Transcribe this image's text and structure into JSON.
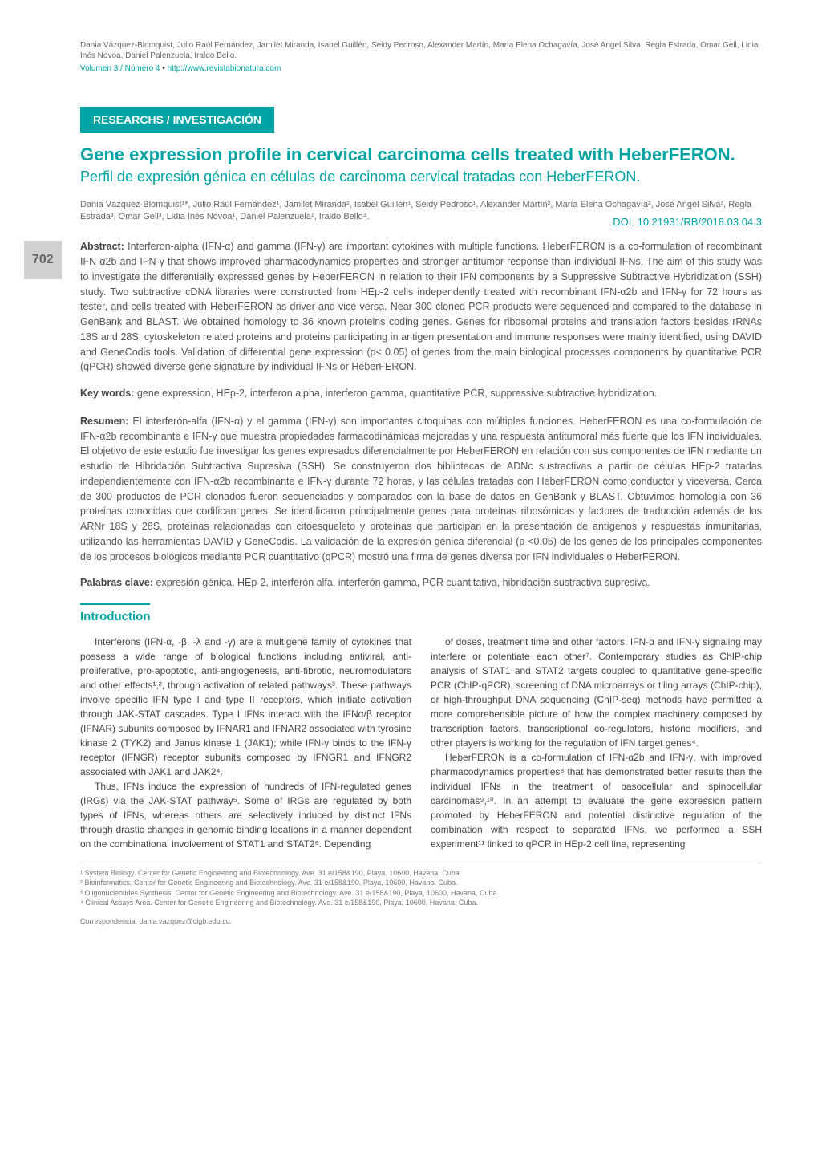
{
  "page_number": "702",
  "header": {
    "authors_line": "Dania Vázquez-Blomquist, Julio Raúl Fernández, Jamilet Miranda, Isabel Guillén, Seidy Pedroso, Alexander Martín, María Elena Ochagavía, José Angel Silva, Regla Estrada, Omar Gell, Lidia Inés Novoa, Daniel Palenzuela, Iraldo Bello.",
    "volume": "Volumen 3 / Número 4",
    "bullet": " • ",
    "url": "http://www.revistabionatura.com"
  },
  "section_badge": "RESEARCHS / INVESTIGACIÓN",
  "title_en": "Gene expression profile in cervical carcinoma cells treated with HeberFERON.",
  "title_es": "Perfil de expresión génica en células de carcinoma cervical tratadas con HeberFERON.",
  "author_line": "Dania Vázquez-Blomquist¹*, Julio Raúl Fernández¹, Jamilet Miranda², Isabel Guillén¹, Seidy Pedroso¹, Alexander Martín², María Elena Ochagavía², José Angel Silva³, Regla Estrada³, Omar Gell³, Lidia Inés Novoa¹, Daniel Palenzuela¹, Iraldo Bello⁴.",
  "doi": "DOI. 10.21931/RB/2018.03.04.3",
  "abstract_en": {
    "label": "Abstract:",
    "text": " Interferon-alpha (IFN-α) and gamma (IFN-γ) are important cytokines with multiple functions. HeberFERON is a co-formulation of recombinant IFN-α2b and IFN-γ that shows improved pharmacodynamics properties and stronger antitumor response than individual IFNs. The aim of this study was to investigate the differentially expressed genes by HeberFERON in relation to their IFN components by a Suppressive Subtractive Hybridization (SSH) study. Two subtractive cDNA libraries were constructed from HEp-2 cells independently treated with recombinant IFN-α2b and IFN-γ for 72 hours as tester, and cells treated with HeberFERON as driver and vice versa. Near 300 cloned PCR products were sequenced and compared to the database in GenBank and BLAST. We obtained homology to 36 known proteins coding genes. Genes for ribosomal proteins and translation factors besides rRNAs 18S and 28S, cytoskeleton related proteins and proteins participating in antigen presentation and immune responses were mainly identified, using DAVID and GeneCodis tools. Validation of differential gene expression (p< 0.05) of genes from the main biological processes components by quantitative PCR (qPCR) showed diverse gene signature by individual IFNs or HeberFERON."
  },
  "keywords_en": {
    "label": "Key words:",
    "text": " gene expression, HEp-2, interferon alpha, interferon gamma, quantitative PCR, suppressive subtractive hybridization."
  },
  "abstract_es": {
    "label": "Resumen:",
    "text": " El interferón-alfa (IFN-α) y el gamma (IFN-γ) son importantes citoquinas con múltiples funciones. HeberFERON es una co-formulación de IFN-α2b recombinante e IFN-γ que muestra propiedades farmacodinámicas mejoradas y una respuesta antitumoral más fuerte que los IFN individuales. El objetivo de este estudio fue investigar los genes expresados diferencialmente por HeberFERON en relación con sus componentes de IFN mediante un estudio de Hibridación Subtractiva Supresiva (SSH). Se construyeron dos bibliotecas de ADNc sustractivas a partir de células HEp-2 tratadas independientemente con IFN-α2b recombinante e IFN-γ durante 72 horas, y las células tratadas con HeberFERON como conductor y viceversa. Cerca de 300 productos de PCR clonados fueron secuenciados y comparados con la base de datos en GenBank y BLAST. Obtuvimos homología con 36 proteínas conocidas que codifican genes. Se identificaron principalmente genes para proteínas ribosómicas y factores de traducción además de los ARNr 18S y 28S, proteínas relacionadas con citoesqueleto y proteínas que participan en la presentación de antígenos y respuestas inmunitarias, utilizando las herramientas DAVID y GeneCodis. La validación de la expresión génica diferencial (p <0.05) de los genes de los principales componentes de los procesos biológicos mediante PCR cuantitativo (qPCR) mostró una firma de genes diversa por IFN individuales o HeberFERON."
  },
  "keywords_es": {
    "label": "Palabras clave:",
    "text": " expresión génica, HEp-2, interferón alfa, interferón gamma, PCR cuantitativa, hibridación sustractiva supresiva."
  },
  "intro_heading": "Introduction",
  "intro_col1": {
    "p1": "Interferons (IFN-α, -β, -λ and -γ) are a multigene family of cytokines that possess a wide range of biological functions including antiviral, anti-proliferative, pro-apoptotic, anti-angiogenesis, anti-fibrotic, neuromodulators and other effects¹,², through activation of related pathways³. These pathways involve specific IFN type I and type II receptors, which initiate activation through JAK-STAT cascades. Type I IFNs interact with the IFNα/β receptor (IFNAR) subunits composed by IFNAR1 and IFNAR2 associated with tyrosine kinase 2 (TYK2) and Janus kinase 1 (JAK1); while IFN-γ binds to the IFN-γ receptor (IFNGR) receptor subunits composed by IFNGR1 and IFNGR2 associated with JAK1 and JAK2⁴.",
    "p2": "Thus, IFNs induce the expression of hundreds of IFN-regulated genes (IRGs) via the JAK-STAT pathway⁵. Some of IRGs are regulated by both types of IFNs, whereas others are selectively induced by distinct IFNs through drastic changes in genomic binding locations in a manner dependent on the combinational involvement of STAT1 and STAT2⁶. Depending"
  },
  "intro_col2": {
    "p1": "of doses, treatment time and other factors, IFN-α and IFN-γ signaling may interfere or potentiate each other⁷. Contemporary studies as ChIP-chip analysis of STAT1 and STAT2 targets coupled to quantitative gene-specific PCR (ChIP-qPCR), screening of DNA microarrays or tiling arrays (ChIP-chip), or high-throughput DNA sequencing (ChIP-seq) methods have permitted a more comprehensible picture of how the complex machinery composed by transcription factors, transcriptional co-regulators, histone modifiers, and other players is working for the regulation of IFN target genes⁴.",
    "p2": "HeberFERON is a co-formulation of IFN-α2b and IFN-γ, with improved pharmacodynamics properties⁸ that has demonstrated better results than the individual IFNs in the treatment of basocellular and spinocellular carcinomas⁹,¹⁰. In an attempt to evaluate the gene expression pattern promoted by HeberFERON and potential distinctive regulation of the combination with respect to separated IFNs, we performed a SSH experiment¹¹ linked to qPCR in HEp-2 cell line, representing"
  },
  "footnotes": [
    "¹ System Biology. Center for Genetic Engineering and Biotechnology. Ave. 31 e/158&190, Playa, 10600, Havana, Cuba.",
    "² Bioinformatics. Center for Genetic Engineering and Biotechnology. Ave. 31 e/158&190, Playa, 10600, Havana, Cuba.",
    "³ Oligonucleotides Synthesis. Center for Genetic Engineering and Biotechnology. Ave. 31 e/158&190, Playa, 10600, Havana, Cuba.",
    "⁴ Clinical Assays Area. Center for Genetic Engineering and Biotechnology. Ave. 31 e/158&190, Playa, 10600, Havana, Cuba."
  ],
  "correspondence": "Correspondencia: dania.vazquez@cigb.edu.cu.",
  "colors": {
    "accent": "#00a3a3",
    "page_number_bg": "#d0d0d0",
    "text_main": "#444",
    "text_muted": "#666"
  }
}
